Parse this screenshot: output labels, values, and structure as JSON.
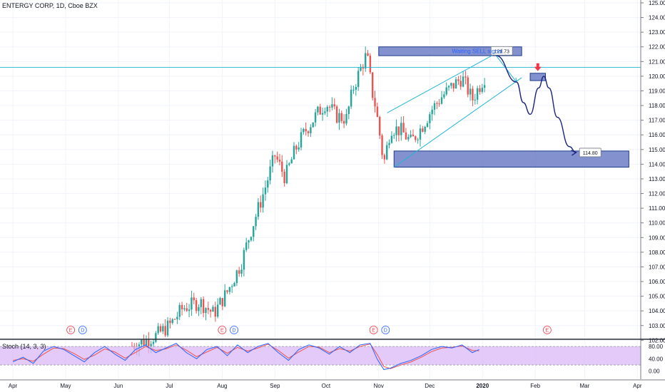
{
  "header": {
    "title": "ENTERGY CORP, 1D, Cboe BZX"
  },
  "indicator": {
    "label": "Stoch (14, 3, 3)"
  },
  "chart_data": {
    "type": "candlestick",
    "symbol": "ENTERGY CORP",
    "interval": "1D",
    "exchange": "Cboe BZX",
    "ylim": [
      101.8,
      125.2
    ],
    "y_ticks": [
      "125.00",
      "124.00",
      "123.00",
      "122.00",
      "121.00",
      "120.00",
      "119.00",
      "118.00",
      "117.00",
      "116.00",
      "115.00",
      "114.00",
      "113.00",
      "112.00",
      "111.00",
      "110.00",
      "109.00",
      "108.00",
      "107.00",
      "106.00",
      "105.00",
      "104.00",
      "103.00",
      "102.00"
    ],
    "x_ticks": [
      {
        "label": "Apr",
        "t": 0
      },
      {
        "label": "May",
        "t": 31
      },
      {
        "label": "Jun",
        "t": 62
      },
      {
        "label": "Jul",
        "t": 92
      },
      {
        "label": "Aug",
        "t": 123
      },
      {
        "label": "Sep",
        "t": 154
      },
      {
        "label": "Oct",
        "t": 184
      },
      {
        "label": "Nov",
        "t": 215
      },
      {
        "label": "Dec",
        "t": 245
      },
      {
        "label": "2020",
        "t": 276
      },
      {
        "label": "Feb",
        "t": 307
      },
      {
        "label": "Mar",
        "t": 336
      },
      {
        "label": "Apr",
        "t": 367
      }
    ],
    "price_path": [
      [
        70,
        101.6
      ],
      [
        84,
        102.3
      ],
      [
        92,
        103.0
      ],
      [
        100,
        104.2
      ],
      [
        110,
        104.6
      ],
      [
        118,
        103.8
      ],
      [
        126,
        105.3
      ],
      [
        134,
        107.2
      ],
      [
        140,
        109.5
      ],
      [
        148,
        112.3
      ],
      [
        154,
        114.6
      ],
      [
        160,
        113.1
      ],
      [
        166,
        115.0
      ],
      [
        172,
        116.3
      ],
      [
        178,
        117.3
      ],
      [
        184,
        118.2
      ],
      [
        190,
        117.3
      ],
      [
        196,
        117.1
      ],
      [
        200,
        119.2
      ],
      [
        205,
        120.7
      ],
      [
        208,
        121.5
      ],
      [
        211,
        119.0
      ],
      [
        213,
        118.0
      ],
      [
        215,
        116.5
      ],
      [
        218,
        114.0
      ],
      [
        222,
        116.5
      ],
      [
        228,
        116.3
      ],
      [
        234,
        115.5
      ],
      [
        240,
        116.5
      ],
      [
        246,
        117.7
      ],
      [
        252,
        118.6
      ],
      [
        258,
        119.3
      ],
      [
        264,
        119.9
      ],
      [
        270,
        118.4
      ],
      [
        274,
        119.3
      ],
      [
        278,
        120.1
      ]
    ],
    "current_price": 120.6,
    "annotations": {
      "sell_zone": {
        "price_top": 122.0,
        "price_bottom": 121.4,
        "t_start": 215,
        "t_end": 299
      },
      "entry_zone": {
        "price_top": 120.2,
        "price_bottom": 119.7,
        "t_start": 304,
        "t_end": 313
      },
      "target_zone": {
        "price_top": 114.9,
        "price_bottom": 113.8,
        "t_start": 224,
        "t_end": 362
      },
      "channel_upper": [
        [
          220,
          117.5
        ],
        [
          283,
          121.5
        ]
      ],
      "channel_lower": [
        [
          224,
          113.8
        ],
        [
          299,
          119.9
        ]
      ],
      "projection": [
        [
          284,
          121.4
        ],
        [
          296,
          119.6
        ],
        [
          300,
          118.2
        ],
        [
          304,
          117.4
        ],
        [
          309,
          119.2
        ],
        [
          312,
          120.0
        ],
        [
          315,
          119.2
        ],
        [
          320,
          117.2
        ],
        [
          327,
          115.2
        ],
        [
          331,
          114.8
        ]
      ],
      "label_top": {
        "text": "121.73",
        "price": 121.73
      },
      "label_target": {
        "text": "114.80",
        "price": 114.8
      },
      "note": "Waiting SELL signal",
      "earnings": [
        {
          "t": 34,
          "label": "E"
        },
        {
          "t": 41,
          "label": "D"
        },
        {
          "t": 123,
          "label": "E"
        },
        {
          "t": 130,
          "label": "D"
        },
        {
          "t": 212,
          "label": "E"
        },
        {
          "t": 219,
          "label": "D"
        },
        {
          "t": 314,
          "label": "E"
        }
      ]
    },
    "stoch": {
      "name": "Stoch (14, 3, 3)",
      "ylim": [
        0,
        100
      ],
      "ticks": [
        "80.00",
        "40.00",
        "0.00"
      ],
      "band": [
        20,
        80
      ],
      "k": [
        [
          0,
          30
        ],
        [
          6,
          45
        ],
        [
          12,
          25
        ],
        [
          18,
          65
        ],
        [
          24,
          80
        ],
        [
          30,
          70
        ],
        [
          36,
          50
        ],
        [
          42,
          30
        ],
        [
          48,
          60
        ],
        [
          54,
          80
        ],
        [
          60,
          55
        ],
        [
          66,
          35
        ],
        [
          72,
          70
        ],
        [
          78,
          85
        ],
        [
          84,
          60
        ],
        [
          90,
          75
        ],
        [
          96,
          90
        ],
        [
          102,
          60
        ],
        [
          108,
          40
        ],
        [
          114,
          70
        ],
        [
          120,
          80
        ],
        [
          126,
          50
        ],
        [
          132,
          85
        ],
        [
          138,
          60
        ],
        [
          144,
          80
        ],
        [
          150,
          90
        ],
        [
          156,
          60
        ],
        [
          162,
          35
        ],
        [
          168,
          70
        ],
        [
          174,
          85
        ],
        [
          180,
          75
        ],
        [
          186,
          55
        ],
        [
          192,
          80
        ],
        [
          198,
          60
        ],
        [
          204,
          85
        ],
        [
          210,
          90
        ],
        [
          214,
          40
        ],
        [
          218,
          5
        ],
        [
          222,
          10
        ],
        [
          228,
          25
        ],
        [
          234,
          35
        ],
        [
          240,
          50
        ],
        [
          246,
          70
        ],
        [
          252,
          80
        ],
        [
          258,
          75
        ],
        [
          264,
          85
        ],
        [
          270,
          60
        ],
        [
          274,
          70
        ]
      ],
      "d": [
        [
          0,
          35
        ],
        [
          6,
          40
        ],
        [
          12,
          32
        ],
        [
          18,
          55
        ],
        [
          24,
          75
        ],
        [
          30,
          73
        ],
        [
          36,
          57
        ],
        [
          42,
          38
        ],
        [
          48,
          52
        ],
        [
          54,
          72
        ],
        [
          60,
          62
        ],
        [
          66,
          42
        ],
        [
          72,
          60
        ],
        [
          78,
          80
        ],
        [
          84,
          67
        ],
        [
          90,
          72
        ],
        [
          96,
          85
        ],
        [
          102,
          68
        ],
        [
          108,
          47
        ],
        [
          114,
          62
        ],
        [
          120,
          77
        ],
        [
          126,
          58
        ],
        [
          132,
          77
        ],
        [
          138,
          65
        ],
        [
          144,
          75
        ],
        [
          150,
          87
        ],
        [
          156,
          67
        ],
        [
          162,
          42
        ],
        [
          168,
          62
        ],
        [
          174,
          80
        ],
        [
          180,
          78
        ],
        [
          186,
          60
        ],
        [
          192,
          73
        ],
        [
          198,
          65
        ],
        [
          204,
          80
        ],
        [
          210,
          88
        ],
        [
          214,
          55
        ],
        [
          218,
          15
        ],
        [
          222,
          8
        ],
        [
          228,
          20
        ],
        [
          234,
          30
        ],
        [
          240,
          45
        ],
        [
          246,
          63
        ],
        [
          252,
          75
        ],
        [
          258,
          77
        ],
        [
          264,
          82
        ],
        [
          270,
          67
        ],
        [
          274,
          66
        ]
      ]
    },
    "colors": {
      "up": "#26a69a",
      "down": "#ef5350",
      "zone_fill": "#6d7ec7",
      "zone_stroke": "#1e3a8a",
      "channel": "#22b7d4",
      "projection": "#1a237e",
      "k_line": "#2962ff",
      "d_line": "#ef5350",
      "stoch_band": "#d9b8f5",
      "arrow": "#f23645"
    }
  }
}
